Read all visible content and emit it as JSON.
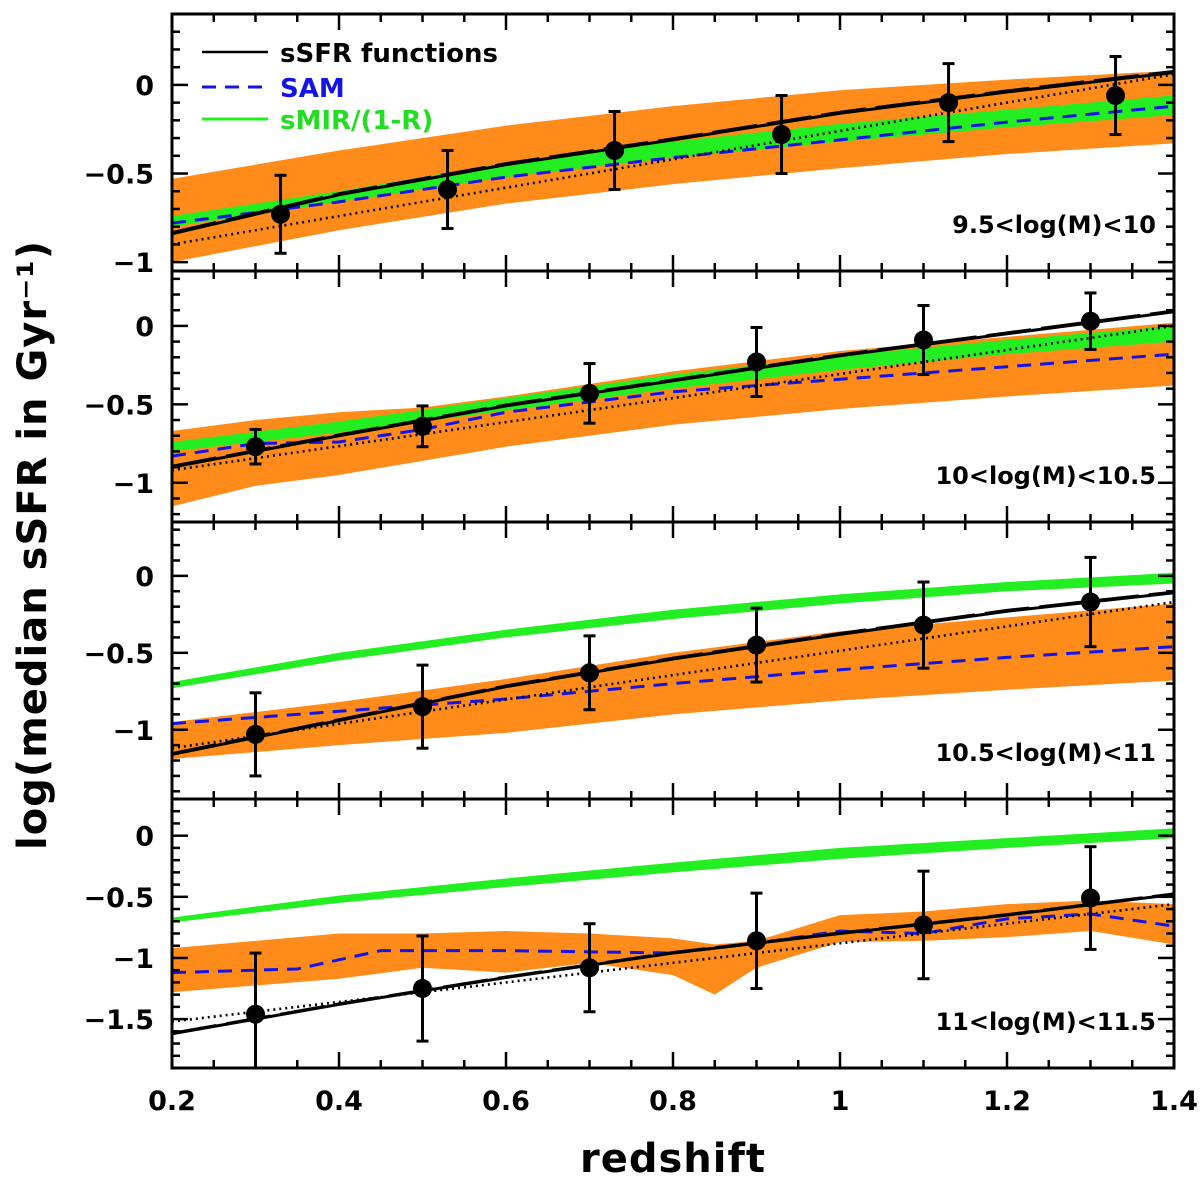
{
  "chart_data": {
    "type": "line",
    "xlabel": "redshift",
    "ylabel": "log(median sSFR in Gyr⁻¹)",
    "xlim": [
      0.2,
      1.4
    ],
    "x_ticks": [
      "0.2",
      "0.4",
      "0.6",
      "0.8",
      "1",
      "1.2",
      "1.4"
    ],
    "legend": [
      {
        "label": "sSFR functions",
        "color": "#000000",
        "style": "solid"
      },
      {
        "label": "SAM",
        "color": "#1010e0",
        "style": "dashed"
      },
      {
        "label": "sMIR/(1-R)",
        "color": "#00e000",
        "style": "solid"
      }
    ],
    "legend_position": "top-left",
    "colors": {
      "band": "#ff8c1a",
      "green": "#22ee22",
      "sam": "#1414e6",
      "black": "#000000"
    },
    "panels": [
      {
        "label": "9.5<log(M)<10",
        "ylim": [
          -1.05,
          0.4
        ],
        "y_ticks": [
          {
            "v": 0,
            "t": "0"
          },
          {
            "v": -0.5,
            "t": "−0.5"
          },
          {
            "v": -1,
            "t": "−1"
          }
        ],
        "points": {
          "x": [
            0.33,
            0.53,
            0.73,
            0.93,
            1.13,
            1.33
          ],
          "y": [
            -0.73,
            -0.59,
            -0.37,
            -0.28,
            -0.1,
            -0.06
          ],
          "err": [
            0.22,
            0.22,
            0.22,
            0.22,
            0.22,
            0.22
          ]
        },
        "ssfr_fit": {
          "x": [
            0.2,
            0.4,
            0.6,
            0.8,
            1.0,
            1.2,
            1.4
          ],
          "y": [
            -0.84,
            -0.62,
            -0.45,
            -0.31,
            -0.16,
            -0.04,
            0.07
          ]
        },
        "dotted_fit": {
          "x": [
            0.2,
            1.4
          ],
          "y": [
            -0.9,
            0.06
          ]
        },
        "sam": {
          "x": [
            0.2,
            0.4,
            0.6,
            0.8,
            1.0,
            1.2,
            1.4
          ],
          "y": [
            -0.78,
            -0.66,
            -0.52,
            -0.41,
            -0.31,
            -0.21,
            -0.12
          ]
        },
        "smir": {
          "x": [
            0.2,
            0.4,
            0.6,
            0.8,
            1.0,
            1.2,
            1.4
          ],
          "lo": [
            -0.8,
            -0.66,
            -0.52,
            -0.41,
            -0.32,
            -0.24,
            -0.17
          ],
          "hi": [
            -0.74,
            -0.6,
            -0.44,
            -0.32,
            -0.22,
            -0.14,
            -0.06
          ]
        },
        "band": {
          "x": [
            0.2,
            0.4,
            0.6,
            0.8,
            1.0,
            1.2,
            1.4
          ],
          "lo": [
            -1.0,
            -0.82,
            -0.67,
            -0.56,
            -0.47,
            -0.39,
            -0.33
          ],
          "hi": [
            -0.53,
            -0.37,
            -0.23,
            -0.12,
            -0.03,
            0.03,
            0.08
          ]
        }
      },
      {
        "label": "10<log(M)<10.5",
        "ylim": [
          -1.25,
          0.35
        ],
        "y_ticks": [
          {
            "v": 0,
            "t": "0"
          },
          {
            "v": -0.5,
            "t": "−0.5"
          },
          {
            "v": -1,
            "t": "−1"
          }
        ],
        "points": {
          "x": [
            0.3,
            0.5,
            0.7,
            0.9,
            1.1,
            1.3
          ],
          "y": [
            -0.77,
            -0.64,
            -0.43,
            -0.23,
            -0.09,
            0.03
          ],
          "err": [
            0.11,
            0.13,
            0.19,
            0.22,
            0.22,
            0.18
          ]
        },
        "ssfr_fit": {
          "x": [
            0.2,
            0.4,
            0.6,
            0.8,
            1.0,
            1.2,
            1.4
          ],
          "y": [
            -0.9,
            -0.7,
            -0.51,
            -0.35,
            -0.19,
            -0.05,
            0.09
          ]
        },
        "dotted_fit": {
          "x": [
            0.2,
            1.4
          ],
          "y": [
            -0.92,
            0.0
          ]
        },
        "sam": {
          "x": [
            0.2,
            0.3,
            0.4,
            0.5,
            0.6,
            0.8,
            1.0,
            1.2,
            1.4
          ],
          "y": [
            -0.83,
            -0.75,
            -0.74,
            -0.66,
            -0.55,
            -0.42,
            -0.34,
            -0.26,
            -0.18
          ]
        },
        "smir": {
          "x": [
            0.2,
            0.4,
            0.6,
            0.8,
            1.0,
            1.2,
            1.4
          ],
          "lo": [
            -0.8,
            -0.68,
            -0.54,
            -0.4,
            -0.28,
            -0.18,
            -0.1
          ],
          "hi": [
            -0.74,
            -0.61,
            -0.46,
            -0.31,
            -0.19,
            -0.09,
            0.0
          ]
        },
        "band": {
          "x": [
            0.2,
            0.3,
            0.4,
            0.5,
            0.6,
            0.8,
            1.0,
            1.2,
            1.4
          ],
          "lo": [
            -1.15,
            -1.02,
            -0.95,
            -0.86,
            -0.77,
            -0.63,
            -0.53,
            -0.45,
            -0.38
          ],
          "hi": [
            -0.67,
            -0.6,
            -0.55,
            -0.52,
            -0.45,
            -0.29,
            -0.16,
            -0.07,
            0.02
          ]
        }
      },
      {
        "label": "10.5<log(M)<11",
        "ylim": [
          -1.45,
          0.35
        ],
        "y_ticks": [
          {
            "v": 0,
            "t": "0"
          },
          {
            "v": -0.5,
            "t": "−0.5"
          },
          {
            "v": -1,
            "t": "−1"
          }
        ],
        "points": {
          "x": [
            0.3,
            0.5,
            0.7,
            0.9,
            1.1,
            1.3
          ],
          "y": [
            -1.03,
            -0.85,
            -0.63,
            -0.45,
            -0.32,
            -0.17
          ],
          "err": [
            0.27,
            0.27,
            0.24,
            0.24,
            0.28,
            0.29
          ]
        },
        "ssfr_fit": {
          "x": [
            0.2,
            0.4,
            0.6,
            0.8,
            1.0,
            1.2,
            1.4
          ],
          "y": [
            -1.16,
            -0.94,
            -0.72,
            -0.54,
            -0.38,
            -0.23,
            -0.11
          ]
        },
        "dotted_fit": {
          "x": [
            0.2,
            1.4
          ],
          "y": [
            -1.12,
            -0.17
          ]
        },
        "sam": {
          "x": [
            0.2,
            0.4,
            0.6,
            0.8,
            1.0,
            1.2,
            1.4
          ],
          "y": [
            -0.96,
            -0.88,
            -0.8,
            -0.7,
            -0.61,
            -0.53,
            -0.46
          ]
        },
        "smir": {
          "x": [
            0.2,
            0.4,
            0.6,
            0.8,
            1.0,
            1.2,
            1.4
          ],
          "lo": [
            -0.73,
            -0.55,
            -0.4,
            -0.28,
            -0.18,
            -0.1,
            -0.05
          ],
          "hi": [
            -0.69,
            -0.5,
            -0.35,
            -0.22,
            -0.12,
            -0.04,
            0.02
          ]
        },
        "band": {
          "x": [
            0.2,
            0.4,
            0.6,
            0.8,
            1.0,
            1.2,
            1.4
          ],
          "lo": [
            -1.19,
            -1.1,
            -1.02,
            -0.9,
            -0.81,
            -0.74,
            -0.68
          ],
          "hi": [
            -0.95,
            -0.82,
            -0.67,
            -0.5,
            -0.36,
            -0.27,
            -0.18
          ]
        }
      },
      {
        "label": "11<log(M)<11.5",
        "ylim": [
          -1.9,
          0.3
        ],
        "y_ticks": [
          {
            "v": 0,
            "t": "0"
          },
          {
            "v": -0.5,
            "t": "−0.5"
          },
          {
            "v": -1,
            "t": "−1"
          },
          {
            "v": -1.5,
            "t": "−1.5"
          }
        ],
        "points": {
          "x": [
            0.3,
            0.5,
            0.7,
            0.9,
            1.1,
            1.3
          ],
          "y": [
            -1.46,
            -1.25,
            -1.08,
            -0.86,
            -0.73,
            -0.51
          ],
          "err": [
            0.5,
            0.43,
            0.36,
            0.39,
            0.44,
            0.42
          ]
        },
        "ssfr_fit": {
          "x": [
            0.2,
            0.4,
            0.6,
            0.8,
            1.0,
            1.2,
            1.4
          ],
          "y": [
            -1.62,
            -1.38,
            -1.16,
            -0.96,
            -0.8,
            -0.65,
            -0.48
          ]
        },
        "dotted_fit": {
          "x": [
            0.2,
            1.4
          ],
          "y": [
            -1.52,
            -0.56
          ]
        },
        "sam": {
          "x": [
            0.2,
            0.35,
            0.45,
            0.6,
            0.7,
            0.8,
            0.9,
            1.0,
            1.1,
            1.2,
            1.3,
            1.4
          ],
          "y": [
            -1.12,
            -1.09,
            -0.94,
            -0.94,
            -0.95,
            -0.96,
            -0.88,
            -0.78,
            -0.8,
            -0.68,
            -0.64,
            -0.74
          ]
        },
        "smir": {
          "x": [
            0.2,
            0.4,
            0.6,
            0.8,
            1.0,
            1.2,
            1.4
          ],
          "lo": [
            -0.71,
            -0.55,
            -0.42,
            -0.3,
            -0.19,
            -0.1,
            -0.02
          ],
          "hi": [
            -0.67,
            -0.49,
            -0.35,
            -0.22,
            -0.1,
            -0.02,
            0.06
          ]
        },
        "band": {
          "x": [
            0.2,
            0.4,
            0.5,
            0.6,
            0.7,
            0.8,
            0.85,
            0.9,
            1.0,
            1.1,
            1.2,
            1.3,
            1.4
          ],
          "lo": [
            -1.28,
            -1.17,
            -1.08,
            -1.12,
            -1.04,
            -1.14,
            -1.3,
            -1.08,
            -0.87,
            -0.86,
            -0.83,
            -0.78,
            -0.89
          ],
          "hi": [
            -0.92,
            -0.8,
            -0.8,
            -0.78,
            -0.8,
            -0.84,
            -0.89,
            -0.86,
            -0.65,
            -0.62,
            -0.56,
            -0.53,
            -0.56
          ]
        }
      }
    ]
  }
}
